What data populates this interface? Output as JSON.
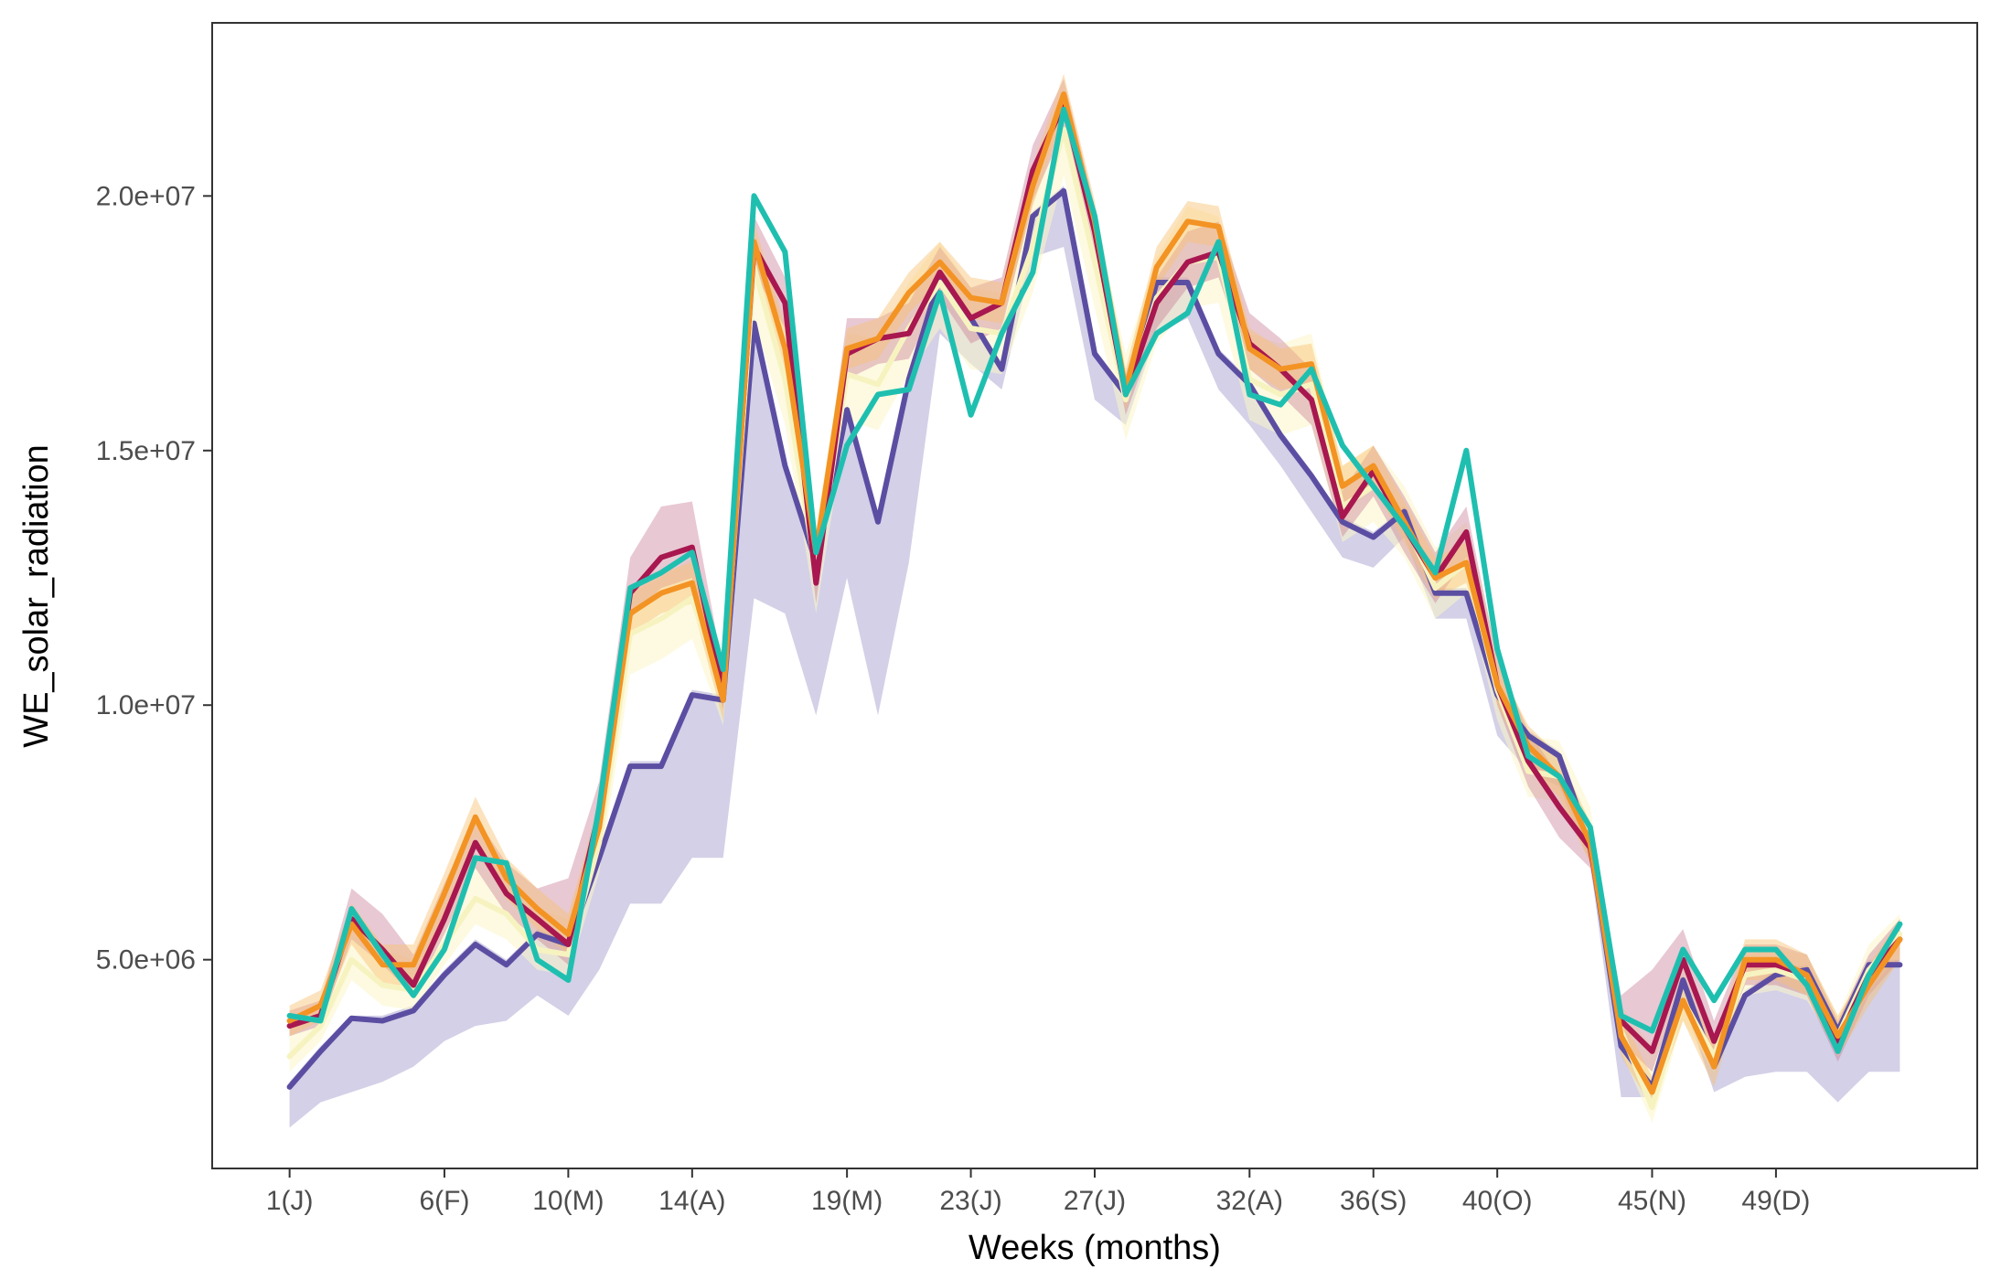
{
  "chart_data": {
    "type": "line",
    "title": "",
    "xlabel": "Weeks (months)",
    "ylabel": "WE_solar_radiation",
    "xlim": [
      -1.5,
      55.5
    ],
    "ylim": [
      900000,
      23400000
    ],
    "x_ticks": [
      {
        "x": 1,
        "label": "1(J)"
      },
      {
        "x": 6,
        "label": "6(F)"
      },
      {
        "x": 10,
        "label": "10(M)"
      },
      {
        "x": 14,
        "label": "14(A)"
      },
      {
        "x": 19,
        "label": "19(M)"
      },
      {
        "x": 23,
        "label": "23(J)"
      },
      {
        "x": 27,
        "label": "27(J)"
      },
      {
        "x": 32,
        "label": "32(A)"
      },
      {
        "x": 36,
        "label": "36(S)"
      },
      {
        "x": 40,
        "label": "40(O)"
      },
      {
        "x": 45,
        "label": "45(N)"
      },
      {
        "x": 49,
        "label": "49(D)"
      }
    ],
    "y_ticks": [
      {
        "value": 5000000,
        "label": "5.0e+06"
      },
      {
        "value": 10000000,
        "label": "1.0e+07"
      },
      {
        "value": 15000000,
        "label": "1.5e+07"
      },
      {
        "value": 20000000,
        "label": "2.0e+07"
      }
    ],
    "grid": false,
    "legend": "none",
    "x": [
      1,
      2,
      3,
      4,
      5,
      6,
      7,
      8,
      9,
      10,
      11,
      12,
      13,
      14,
      15,
      16,
      17,
      18,
      19,
      20,
      21,
      22,
      23,
      24,
      25,
      26,
      27,
      28,
      29,
      30,
      31,
      32,
      33,
      34,
      35,
      36,
      37,
      38,
      39,
      40,
      41,
      42,
      43,
      44,
      45,
      46,
      47,
      48,
      49,
      50,
      51,
      52,
      53
    ],
    "series": [
      {
        "color": "#5b4ea2",
        "band_color": "#9690c6",
        "band_opacity": 0.42,
        "values": [
          2500000,
          3200000,
          3850000,
          3800000,
          4000000,
          4700000,
          5300000,
          4900000,
          5500000,
          5300000,
          7000000,
          8800000,
          8800000,
          10200000,
          10100000,
          17500000,
          14700000,
          12800000,
          15800000,
          13600000,
          16400000,
          18400000,
          17600000,
          16600000,
          19600000,
          20100000,
          16900000,
          16100000,
          18300000,
          18300000,
          16900000,
          16300000,
          15300000,
          14500000,
          13600000,
          13300000,
          13800000,
          12200000,
          12200000,
          10200000,
          9400000,
          9000000,
          7300000,
          3300000,
          2500000,
          4600000,
          2900000,
          4300000,
          4700000,
          4800000,
          3600000,
          4900000,
          4900000
        ],
        "lower": [
          1700000,
          2200000,
          2400000,
          2600000,
          2900000,
          3400000,
          3700000,
          3800000,
          4300000,
          3900000,
          4800000,
          6100000,
          6100000,
          7000000,
          7000000,
          12100000,
          11800000,
          9800000,
          12500000,
          9800000,
          12800000,
          17300000,
          16700000,
          16200000,
          18800000,
          19000000,
          16000000,
          15500000,
          17300000,
          17600000,
          16200000,
          15500000,
          14700000,
          13800000,
          12900000,
          12700000,
          13300000,
          11700000,
          11700000,
          9400000,
          8700000,
          8400000,
          6900000,
          2300000,
          2300000,
          4200000,
          2400000,
          2700000,
          2800000,
          2800000,
          2200000,
          2800000,
          2800000
        ],
        "upper": [
          2600000,
          3300000,
          3900000,
          3900000,
          4100000,
          4800000,
          5400000,
          5000000,
          5600000,
          5400000,
          7100000,
          8900000,
          8900000,
          10300000,
          10200000,
          17600000,
          14800000,
          12900000,
          15900000,
          13700000,
          16500000,
          18500000,
          17700000,
          16700000,
          19700000,
          20200000,
          17000000,
          16200000,
          18400000,
          18400000,
          17000000,
          16400000,
          15400000,
          14600000,
          13700000,
          13400000,
          13900000,
          12300000,
          12300000,
          10300000,
          9500000,
          9100000,
          7400000,
          3400000,
          2600000,
          4700000,
          3000000,
          4400000,
          4800000,
          4900000,
          3700000,
          5000000,
          5000000
        ]
      },
      {
        "color": "#f7f3c0",
        "band_color": "#fbf6c8",
        "band_opacity": 0.55,
        "values": [
          3100000,
          3700000,
          5000000,
          4500000,
          4400000,
          5300000,
          6200000,
          5900000,
          5200000,
          5100000,
          7300000,
          11400000,
          11700000,
          12100000,
          10300000,
          18600000,
          16400000,
          12600000,
          16500000,
          16300000,
          17400000,
          18300000,
          17400000,
          17300000,
          19000000,
          21300000,
          18700000,
          16000000,
          18000000,
          18700000,
          18800000,
          16400000,
          16100000,
          16300000,
          13900000,
          14300000,
          13600000,
          12300000,
          12800000,
          10300000,
          8700000,
          8600000,
          7400000,
          3600000,
          2100000,
          4200000,
          3100000,
          4700000,
          4800000,
          4600000,
          3500000,
          4800000,
          5500000
        ],
        "lower": [
          2800000,
          3400000,
          4600000,
          4100000,
          4000000,
          4900000,
          5700000,
          5400000,
          4800000,
          4700000,
          6700000,
          10600000,
          10900000,
          11300000,
          9600000,
          17600000,
          15500000,
          11800000,
          15600000,
          15400000,
          16500000,
          17400000,
          16600000,
          16500000,
          18100000,
          20400000,
          17800000,
          15200000,
          17100000,
          17800000,
          17900000,
          15600000,
          15300000,
          15500000,
          13200000,
          13600000,
          12900000,
          11700000,
          12200000,
          9700000,
          8200000,
          8100000,
          6900000,
          3200000,
          1800000,
          3800000,
          2800000,
          4300000,
          4400000,
          4200000,
          3200000,
          4400000,
          5100000
        ],
        "upper": [
          3700000,
          4200000,
          5800000,
          5200000,
          5000000,
          6100000,
          7100000,
          6700000,
          6000000,
          5800000,
          8200000,
          12200000,
          12500000,
          12900000,
          11000000,
          19300000,
          17600000,
          13500000,
          17300000,
          17200000,
          18300000,
          19100000,
          18200000,
          18100000,
          20300000,
          22000000,
          19600000,
          16900000,
          18800000,
          19800000,
          19600000,
          17300000,
          17100000,
          17300000,
          14700000,
          15100000,
          14300000,
          13100000,
          13600000,
          11100000,
          9400000,
          9300000,
          8000000,
          4100000,
          3300000,
          5000000,
          3500000,
          5100000,
          5200000,
          5100000,
          3900000,
          5300000,
          5900000
        ]
      },
      {
        "color": "#a8174f",
        "band_color": "#c97b95",
        "band_opacity": 0.42,
        "values": [
          3700000,
          3900000,
          5800000,
          5200000,
          4500000,
          5800000,
          7300000,
          6300000,
          5800000,
          5300000,
          7900000,
          12200000,
          12900000,
          13100000,
          10300000,
          19000000,
          17900000,
          12400000,
          16900000,
          17200000,
          17300000,
          18500000,
          17600000,
          17900000,
          20500000,
          21800000,
          19300000,
          16100000,
          17900000,
          18700000,
          18900000,
          17100000,
          16600000,
          16000000,
          13700000,
          14600000,
          13500000,
          12500000,
          13400000,
          10400000,
          8900000,
          8000000,
          7200000,
          3800000,
          3200000,
          5000000,
          3400000,
          4900000,
          4900000,
          4700000,
          3400000,
          4700000,
          5400000
        ],
        "lower": [
          3500000,
          3700000,
          5400000,
          4900000,
          4300000,
          5500000,
          6800000,
          5900000,
          5400000,
          4900000,
          7400000,
          11700000,
          12300000,
          12500000,
          9900000,
          18500000,
          17400000,
          12000000,
          16400000,
          16700000,
          16800000,
          18000000,
          17100000,
          17400000,
          19900000,
          21300000,
          18800000,
          15700000,
          17400000,
          18200000,
          18400000,
          16600000,
          16100000,
          15500000,
          13300000,
          14100000,
          13000000,
          12000000,
          12900000,
          10000000,
          8400000,
          7400000,
          6800000,
          3400000,
          2800000,
          4600000,
          3000000,
          4500000,
          4500000,
          4300000,
          3000000,
          4300000,
          5000000
        ],
        "upper": [
          4000000,
          4200000,
          6400000,
          5900000,
          5100000,
          6500000,
          7800000,
          6900000,
          6400000,
          6600000,
          8500000,
          12900000,
          13900000,
          14000000,
          10700000,
          19600000,
          18400000,
          13000000,
          17600000,
          17600000,
          17900000,
          19000000,
          18200000,
          18400000,
          21000000,
          22300000,
          19800000,
          16500000,
          18400000,
          19300000,
          19500000,
          17700000,
          17200000,
          16600000,
          14200000,
          15100000,
          14100000,
          13000000,
          13900000,
          10900000,
          9500000,
          8600000,
          7600000,
          4300000,
          4800000,
          5600000,
          3800000,
          5300000,
          5300000,
          5100000,
          3800000,
          5100000,
          5800000
        ]
      },
      {
        "color": "#f39323",
        "band_color": "#f8c070",
        "band_opacity": 0.45,
        "values": [
          3800000,
          4100000,
          5700000,
          4900000,
          4900000,
          6300000,
          7800000,
          6600000,
          6000000,
          5500000,
          7600000,
          11800000,
          12200000,
          12400000,
          10100000,
          19100000,
          17000000,
          13000000,
          17000000,
          17200000,
          18100000,
          18700000,
          18000000,
          17900000,
          20200000,
          22000000,
          19500000,
          16200000,
          18600000,
          19500000,
          19400000,
          17000000,
          16600000,
          16700000,
          14300000,
          14700000,
          13600000,
          12500000,
          12800000,
          10400000,
          9200000,
          8600000,
          7300000,
          3500000,
          2400000,
          4200000,
          2900000,
          5000000,
          5000000,
          4700000,
          3500000,
          4500000,
          5400000
        ],
        "lower": [
          3500000,
          3800000,
          5300000,
          4500000,
          4500000,
          5900000,
          7400000,
          6200000,
          5600000,
          5100000,
          7200000,
          11400000,
          11800000,
          12000000,
          9700000,
          18700000,
          16600000,
          12600000,
          16600000,
          16800000,
          17700000,
          18300000,
          17600000,
          17500000,
          19800000,
          21600000,
          19100000,
          15800000,
          18200000,
          19100000,
          19000000,
          16600000,
          16200000,
          16300000,
          13900000,
          14300000,
          13200000,
          12100000,
          12400000,
          10000000,
          8800000,
          8200000,
          6900000,
          3100000,
          2100000,
          3800000,
          2500000,
          4600000,
          4600000,
          4300000,
          3100000,
          4100000,
          5000000
        ],
        "upper": [
          4100000,
          4400000,
          6100000,
          5300000,
          5300000,
          6700000,
          8200000,
          7000000,
          6400000,
          5900000,
          8000000,
          12200000,
          12600000,
          12800000,
          10500000,
          19500000,
          17400000,
          13400000,
          17400000,
          17600000,
          18500000,
          19100000,
          18400000,
          18300000,
          20600000,
          22400000,
          19900000,
          16600000,
          19000000,
          19900000,
          19800000,
          17400000,
          17000000,
          17100000,
          14700000,
          15100000,
          14000000,
          12900000,
          13200000,
          10800000,
          9600000,
          9000000,
          7700000,
          3900000,
          2700000,
          4600000,
          3300000,
          5400000,
          5400000,
          5100000,
          3900000,
          4900000,
          5800000
        ]
      },
      {
        "color": "#1fbfb0",
        "band_color": "#1fbfb0",
        "band_opacity": 0,
        "values": [
          3900000,
          3800000,
          6000000,
          5100000,
          4300000,
          5200000,
          7000000,
          6900000,
          5000000,
          4600000,
          8000000,
          12300000,
          12600000,
          13000000,
          10700000,
          20000000,
          18900000,
          13000000,
          15100000,
          16100000,
          16200000,
          18100000,
          15700000,
          17300000,
          18500000,
          21700000,
          19600000,
          16100000,
          17300000,
          17700000,
          19100000,
          16100000,
          15900000,
          16600000,
          15100000,
          14300000,
          13500000,
          12600000,
          15000000,
          11100000,
          9000000,
          8600000,
          7600000,
          3900000,
          3600000,
          5200000,
          4200000,
          5200000,
          5200000,
          4500000,
          3200000,
          4700000,
          5700000
        ]
      }
    ]
  }
}
